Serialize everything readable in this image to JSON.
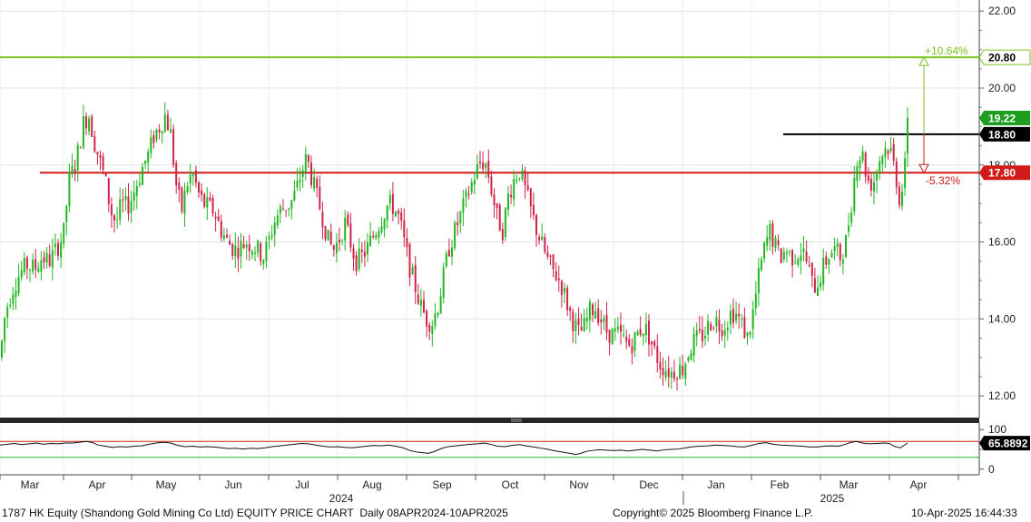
{
  "chart_data": {
    "type": "candlestick",
    "title": "1787 HK Equity (Shandong Gold Mining Co Ltd) EQUITY PRICE CHART",
    "period": "Daily 08APR2024-10APR2025",
    "copyright": "Copyright© 2025 Bloomberg Finance L.P.",
    "timestamp": "10-Apr-2025 16:44:33",
    "price_axis": {
      "ylim": [
        11.6,
        22.1
      ],
      "ticks": [
        "12.00",
        "14.00",
        "16.00",
        "18.00",
        "20.00",
        "22.00"
      ],
      "tick_values": [
        12,
        14,
        16,
        18,
        20,
        22
      ]
    },
    "rsi_axis": {
      "ylim": [
        -5,
        105
      ],
      "ticks": [
        "100",
        "50",
        "0"
      ],
      "tick_values": [
        100,
        50,
        0
      ]
    },
    "month_labels": [
      "Mar",
      "Apr",
      "May",
      "Jun",
      "Jul",
      "Aug",
      "Sep",
      "Oct",
      "Nov",
      "Dec",
      "Jan",
      "Feb",
      "Mar",
      "Apr"
    ],
    "year_labels": [
      "2024",
      "2025"
    ],
    "reference_lines": [
      {
        "price": 20.8,
        "label": "20.80",
        "color": "#7cc221"
      },
      {
        "price": 18.8,
        "label": "18.80",
        "color": "#000000"
      },
      {
        "price": 17.8,
        "label": "17.80",
        "color": "#d11a1a"
      }
    ],
    "last_price": {
      "value": 19.22,
      "label": "19.22",
      "color": "#1e9e1e"
    },
    "annotations": {
      "upside": "+10.64%",
      "downside": "-5.32%"
    },
    "rsi_last": {
      "value": 65.8892,
      "label": "65.8892"
    },
    "rsi_levels": [
      70,
      30
    ],
    "colors": {
      "up": "#22b722",
      "down": "#d0234a",
      "rsi": "#111111"
    },
    "close_path": [
      [
        0,
        13.0
      ],
      [
        6,
        14.2
      ],
      [
        14,
        14.8
      ],
      [
        22,
        15.2
      ],
      [
        30,
        15.4
      ],
      [
        38,
        15.3
      ],
      [
        46,
        15.6
      ],
      [
        54,
        15.5
      ],
      [
        62,
        15.8
      ],
      [
        70,
        16.2
      ],
      [
        76,
        17.6
      ],
      [
        84,
        18.1
      ],
      [
        92,
        19.1
      ],
      [
        98,
        19.3
      ],
      [
        104,
        18.6
      ],
      [
        110,
        18.1
      ],
      [
        116,
        17.6
      ],
      [
        122,
        16.8
      ],
      [
        128,
        16.5
      ],
      [
        134,
        17.0
      ],
      [
        140,
        16.9
      ],
      [
        146,
        17.2
      ],
      [
        152,
        17.6
      ],
      [
        158,
        18.0
      ],
      [
        164,
        18.3
      ],
      [
        170,
        18.8
      ],
      [
        176,
        19.0
      ],
      [
        182,
        19.3
      ],
      [
        188,
        18.8
      ],
      [
        194,
        17.5
      ],
      [
        200,
        16.8
      ],
      [
        206,
        17.5
      ],
      [
        212,
        17.8
      ],
      [
        218,
        17.3
      ],
      [
        224,
        17.0
      ],
      [
        230,
        16.9
      ],
      [
        236,
        16.8
      ],
      [
        242,
        16.4
      ],
      [
        248,
        16.1
      ],
      [
        254,
        15.9
      ],
      [
        260,
        15.8
      ],
      [
        266,
        15.9
      ],
      [
        272,
        16.0
      ],
      [
        278,
        15.9
      ],
      [
        284,
        15.8
      ],
      [
        290,
        15.6
      ],
      [
        296,
        16.0
      ],
      [
        302,
        16.5
      ],
      [
        308,
        16.8
      ],
      [
        314,
        16.9
      ],
      [
        320,
        17.0
      ],
      [
        326,
        17.3
      ],
      [
        332,
        17.8
      ],
      [
        338,
        18.2
      ],
      [
        344,
        17.6
      ],
      [
        350,
        17.1
      ],
      [
        356,
        16.6
      ],
      [
        362,
        16.0
      ],
      [
        368,
        15.8
      ],
      [
        374,
        16.1
      ],
      [
        380,
        16.5
      ],
      [
        386,
        16.0
      ],
      [
        392,
        15.5
      ],
      [
        398,
        15.6
      ],
      [
        404,
        15.8
      ],
      [
        410,
        16.1
      ],
      [
        416,
        16.4
      ],
      [
        422,
        16.7
      ],
      [
        428,
        17.0
      ],
      [
        434,
        16.9
      ],
      [
        440,
        16.6
      ],
      [
        446,
        15.9
      ],
      [
        452,
        15.3
      ],
      [
        458,
        14.8
      ],
      [
        464,
        14.3
      ],
      [
        470,
        14.0
      ],
      [
        476,
        13.9
      ],
      [
        482,
        14.3
      ],
      [
        488,
        15.0
      ],
      [
        494,
        15.8
      ],
      [
        500,
        16.2
      ],
      [
        506,
        16.6
      ],
      [
        512,
        17.0
      ],
      [
        518,
        17.4
      ],
      [
        524,
        17.8
      ],
      [
        530,
        18.1
      ],
      [
        536,
        18.0
      ],
      [
        542,
        17.3
      ],
      [
        548,
        16.6
      ],
      [
        554,
        16.3
      ],
      [
        560,
        17.2
      ],
      [
        566,
        17.6
      ],
      [
        572,
        17.9
      ],
      [
        578,
        17.4
      ],
      [
        584,
        16.9
      ],
      [
        590,
        16.4
      ],
      [
        596,
        16.0
      ],
      [
        602,
        15.6
      ],
      [
        608,
        15.3
      ],
      [
        614,
        15.1
      ],
      [
        620,
        14.8
      ],
      [
        626,
        14.3
      ],
      [
        632,
        13.9
      ],
      [
        638,
        13.6
      ],
      [
        644,
        13.8
      ],
      [
        650,
        14.2
      ],
      [
        656,
        14.3
      ],
      [
        662,
        14.0
      ],
      [
        668,
        13.7
      ],
      [
        674,
        13.6
      ],
      [
        680,
        13.6
      ],
      [
        686,
        13.5
      ],
      [
        692,
        13.3
      ],
      [
        698,
        13.4
      ],
      [
        704,
        13.7
      ],
      [
        710,
        13.8
      ],
      [
        716,
        13.5
      ],
      [
        722,
        13.1
      ],
      [
        728,
        12.8
      ],
      [
        734,
        12.7
      ],
      [
        740,
        12.6
      ],
      [
        746,
        12.7
      ],
      [
        752,
        12.7
      ],
      [
        758,
        13.1
      ],
      [
        764,
        13.4
      ],
      [
        770,
        13.5
      ],
      [
        776,
        13.6
      ],
      [
        782,
        13.9
      ],
      [
        788,
        14.0
      ],
      [
        794,
        13.8
      ],
      [
        800,
        13.9
      ],
      [
        806,
        14.2
      ],
      [
        812,
        14.1
      ],
      [
        818,
        13.8
      ],
      [
        824,
        13.5
      ],
      [
        830,
        14.2
      ],
      [
        836,
        15.1
      ],
      [
        842,
        15.8
      ],
      [
        848,
        16.3
      ],
      [
        854,
        15.9
      ],
      [
        860,
        15.6
      ],
      [
        866,
        15.8
      ],
      [
        872,
        15.6
      ],
      [
        878,
        15.7
      ],
      [
        884,
        15.8
      ],
      [
        890,
        15.4
      ],
      [
        896,
        14.8
      ],
      [
        902,
        15.0
      ],
      [
        908,
        15.4
      ],
      [
        914,
        15.7
      ],
      [
        920,
        15.8
      ],
      [
        926,
        15.6
      ],
      [
        932,
        16.0
      ],
      [
        938,
        17.0
      ],
      [
        944,
        18.2
      ],
      [
        950,
        18.3
      ],
      [
        956,
        17.6
      ],
      [
        962,
        17.5
      ],
      [
        968,
        18.1
      ],
      [
        974,
        18.4
      ],
      [
        980,
        18.5
      ],
      [
        986,
        17.9
      ],
      [
        992,
        17.0
      ],
      [
        998,
        18.1
      ],
      [
        1001,
        19.22
      ]
    ],
    "rsi_path": [
      [
        0,
        61
      ],
      [
        8,
        63
      ],
      [
        16,
        65
      ],
      [
        24,
        62
      ],
      [
        32,
        64
      ],
      [
        40,
        66
      ],
      [
        48,
        63
      ],
      [
        56,
        65
      ],
      [
        64,
        64
      ],
      [
        72,
        66
      ],
      [
        80,
        66
      ],
      [
        88,
        68
      ],
      [
        96,
        70
      ],
      [
        102,
        67
      ],
      [
        108,
        61
      ],
      [
        116,
        58
      ],
      [
        124,
        55
      ],
      [
        132,
        57
      ],
      [
        140,
        56
      ],
      [
        148,
        58
      ],
      [
        156,
        59
      ],
      [
        164,
        63
      ],
      [
        172,
        66
      ],
      [
        180,
        68
      ],
      [
        188,
        66
      ],
      [
        196,
        60
      ],
      [
        204,
        57
      ],
      [
        212,
        58
      ],
      [
        220,
        56
      ],
      [
        228,
        57
      ],
      [
        236,
        56
      ],
      [
        244,
        54
      ],
      [
        252,
        52
      ],
      [
        260,
        53
      ],
      [
        268,
        51
      ],
      [
        276,
        53
      ],
      [
        284,
        52
      ],
      [
        292,
        54
      ],
      [
        300,
        57
      ],
      [
        308,
        59
      ],
      [
        316,
        61
      ],
      [
        324,
        63
      ],
      [
        332,
        65
      ],
      [
        340,
        64
      ],
      [
        348,
        61
      ],
      [
        356,
        58
      ],
      [
        364,
        56
      ],
      [
        372,
        57
      ],
      [
        380,
        55
      ],
      [
        388,
        54
      ],
      [
        396,
        56
      ],
      [
        404,
        58
      ],
      [
        412,
        60
      ],
      [
        420,
        59
      ],
      [
        428,
        61
      ],
      [
        436,
        58
      ],
      [
        444,
        54
      ],
      [
        452,
        47
      ],
      [
        460,
        43
      ],
      [
        468,
        41
      ],
      [
        472,
        40
      ],
      [
        478,
        44
      ],
      [
        486,
        52
      ],
      [
        494,
        57
      ],
      [
        502,
        59
      ],
      [
        510,
        61
      ],
      [
        518,
        63
      ],
      [
        526,
        64
      ],
      [
        534,
        66
      ],
      [
        540,
        63
      ],
      [
        548,
        58
      ],
      [
        556,
        57
      ],
      [
        564,
        60
      ],
      [
        572,
        62
      ],
      [
        580,
        59
      ],
      [
        588,
        56
      ],
      [
        596,
        53
      ],
      [
        604,
        50
      ],
      [
        612,
        46
      ],
      [
        620,
        43
      ],
      [
        628,
        40
      ],
      [
        634,
        37
      ],
      [
        640,
        40
      ],
      [
        646,
        45
      ],
      [
        652,
        47
      ],
      [
        660,
        49
      ],
      [
        668,
        48
      ],
      [
        676,
        47
      ],
      [
        684,
        48
      ],
      [
        692,
        46
      ],
      [
        700,
        48
      ],
      [
        708,
        50
      ],
      [
        716,
        48
      ],
      [
        724,
        46
      ],
      [
        732,
        49
      ],
      [
        740,
        50
      ],
      [
        748,
        51
      ],
      [
        756,
        54
      ],
      [
        764,
        57
      ],
      [
        772,
        58
      ],
      [
        780,
        59
      ],
      [
        788,
        61
      ],
      [
        796,
        60
      ],
      [
        804,
        59
      ],
      [
        812,
        57
      ],
      [
        820,
        56
      ],
      [
        828,
        60
      ],
      [
        836,
        65
      ],
      [
        844,
        67
      ],
      [
        852,
        63
      ],
      [
        860,
        61
      ],
      [
        868,
        60
      ],
      [
        876,
        59
      ],
      [
        884,
        58
      ],
      [
        892,
        56
      ],
      [
        900,
        56
      ],
      [
        908,
        58
      ],
      [
        916,
        59
      ],
      [
        924,
        58
      ],
      [
        932,
        63
      ],
      [
        938,
        68
      ],
      [
        944,
        70
      ],
      [
        950,
        66
      ],
      [
        958,
        64
      ],
      [
        966,
        65
      ],
      [
        974,
        66
      ],
      [
        980,
        65
      ],
      [
        986,
        57
      ],
      [
        992,
        54
      ],
      [
        1000,
        66
      ]
    ]
  }
}
